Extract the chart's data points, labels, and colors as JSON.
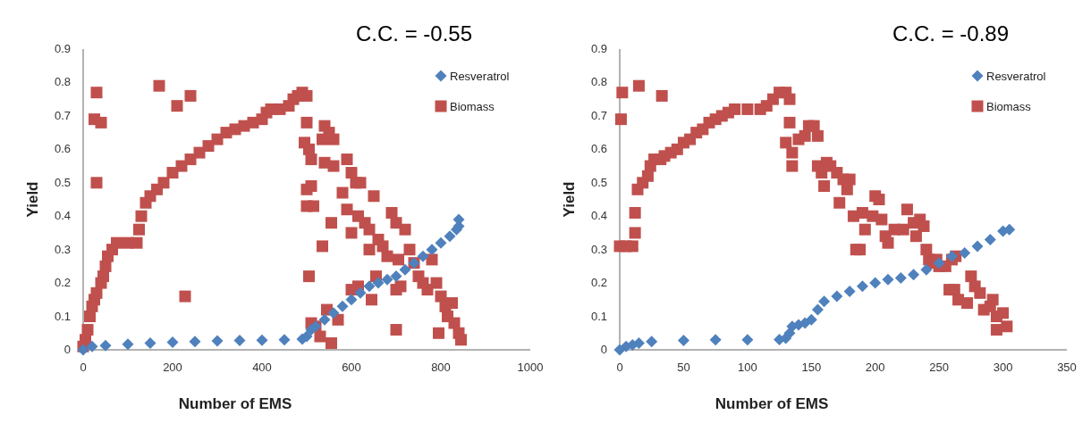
{
  "chart_data": [
    {
      "type": "scatter",
      "title": "C.C. = -0.55",
      "xlabel": "Number of EMS",
      "ylabel": "Yield",
      "xlim": [
        0,
        1000
      ],
      "xticks": [
        0,
        200,
        400,
        600,
        800,
        1000
      ],
      "ylim": [
        0,
        0.9
      ],
      "yticks": [
        0,
        0.1,
        0.2,
        0.3,
        0.4,
        0.5,
        0.6,
        0.7,
        0.8,
        0.9
      ],
      "legend": "top right",
      "grid": false,
      "series": [
        {
          "name": "Resveratrol",
          "color": "#4f81bd",
          "marker": "diamond",
          "x": [
            0,
            20,
            50,
            100,
            150,
            200,
            250,
            300,
            350,
            400,
            450,
            490,
            500,
            510,
            520,
            540,
            560,
            580,
            600,
            620,
            640,
            660,
            680,
            700,
            720,
            740,
            760,
            780,
            800,
            820,
            835,
            840,
            840
          ],
          "values": [
            0,
            0.01,
            0.013,
            0.017,
            0.02,
            0.023,
            0.025,
            0.027,
            0.028,
            0.029,
            0.03,
            0.032,
            0.04,
            0.06,
            0.07,
            0.09,
            0.11,
            0.13,
            0.15,
            0.17,
            0.19,
            0.2,
            0.21,
            0.22,
            0.24,
            0.26,
            0.28,
            0.3,
            0.32,
            0.34,
            0.36,
            0.37,
            0.39
          ]
        },
        {
          "name": "Biomass",
          "color": "#c0504d",
          "marker": "square",
          "x": [
            0,
            5,
            10,
            15,
            20,
            25,
            30,
            40,
            45,
            50,
            55,
            65,
            75,
            100,
            120,
            125,
            130,
            140,
            150,
            165,
            180,
            200,
            220,
            240,
            260,
            280,
            300,
            320,
            340,
            360,
            380,
            400,
            410,
            420,
            440,
            460,
            470,
            480,
            490,
            500,
            25,
            30,
            40,
            30,
            170,
            210,
            240,
            228,
            500,
            495,
            505,
            510,
            500,
            510,
            500,
            515,
            505,
            510,
            520,
            535,
            540,
            550,
            560,
            540,
            560,
            535,
            555,
            545,
            530,
            555,
            570,
            590,
            600,
            610,
            620,
            580,
            590,
            600,
            615,
            630,
            640,
            650,
            640,
            655,
            660,
            670,
            680,
            690,
            700,
            705,
            720,
            730,
            740,
            750,
            760,
            780,
            790,
            800,
            810,
            815,
            825,
            830,
            840,
            845,
            795,
            700,
            600,
            615,
            645,
            700,
            710,
            770
          ],
          "values": [
            0.01,
            0.03,
            0.06,
            0.1,
            0.13,
            0.15,
            0.17,
            0.2,
            0.22,
            0.25,
            0.28,
            0.3,
            0.32,
            0.32,
            0.32,
            0.36,
            0.4,
            0.44,
            0.46,
            0.48,
            0.5,
            0.53,
            0.55,
            0.57,
            0.59,
            0.61,
            0.63,
            0.65,
            0.66,
            0.67,
            0.68,
            0.69,
            0.71,
            0.72,
            0.72,
            0.73,
            0.75,
            0.76,
            0.77,
            0.76,
            0.69,
            0.77,
            0.68,
            0.5,
            0.79,
            0.73,
            0.76,
            0.16,
            0.68,
            0.62,
            0.6,
            0.57,
            0.48,
            0.49,
            0.43,
            0.43,
            0.22,
            0.08,
            0.07,
            0.63,
            0.67,
            0.65,
            0.63,
            0.56,
            0.55,
            0.31,
            0.38,
            0.12,
            0.04,
            0.02,
            0.09,
            0.57,
            0.53,
            0.5,
            0.5,
            0.47,
            0.42,
            0.35,
            0.4,
            0.38,
            0.36,
            0.46,
            0.3,
            0.22,
            0.33,
            0.31,
            0.28,
            0.41,
            0.38,
            0.27,
            0.36,
            0.3,
            0.26,
            0.22,
            0.2,
            0.27,
            0.2,
            0.16,
            0.13,
            0.1,
            0.14,
            0.08,
            0.05,
            0.03,
            0.05,
            0.06,
            0.18,
            0.19,
            0.15,
            0.18,
            0.19,
            0.18
          ]
        }
      ]
    },
    {
      "type": "scatter",
      "title": "C.C. = -0.89",
      "xlabel": "Number of EMS",
      "ylabel": "Yield",
      "xlim": [
        0,
        350
      ],
      "xticks": [
        0,
        50,
        100,
        150,
        200,
        250,
        300,
        350
      ],
      "ylim": [
        0,
        0.9
      ],
      "yticks": [
        0,
        0.1,
        0.2,
        0.3,
        0.4,
        0.5,
        0.6,
        0.7,
        0.8,
        0.9
      ],
      "legend": "top right",
      "grid": false,
      "series": [
        {
          "name": "Resveratrol",
          "color": "#4f81bd",
          "marker": "diamond",
          "x": [
            0,
            5,
            10,
            15,
            25,
            50,
            75,
            100,
            125,
            130,
            133,
            135,
            140,
            145,
            150,
            155,
            160,
            170,
            180,
            190,
            200,
            210,
            220,
            230,
            240,
            250,
            260,
            270,
            280,
            290,
            300,
            305
          ],
          "values": [
            0,
            0.01,
            0.015,
            0.02,
            0.025,
            0.028,
            0.03,
            0.03,
            0.031,
            0.035,
            0.05,
            0.07,
            0.075,
            0.08,
            0.09,
            0.12,
            0.145,
            0.16,
            0.175,
            0.19,
            0.2,
            0.21,
            0.215,
            0.225,
            0.24,
            0.26,
            0.28,
            0.29,
            0.31,
            0.33,
            0.355,
            0.36
          ]
        },
        {
          "name": "Biomass",
          "color": "#c0504d",
          "marker": "square",
          "x": [
            1,
            2,
            15,
            33,
            0,
            5,
            10,
            12,
            12,
            14,
            18,
            22,
            24,
            27,
            32,
            35,
            40,
            45,
            50,
            55,
            60,
            65,
            70,
            75,
            80,
            85,
            90,
            100,
            110,
            115,
            120,
            125,
            130,
            133,
            133,
            130,
            135,
            135,
            140,
            145,
            148,
            152,
            155,
            155,
            158,
            160,
            162,
            165,
            170,
            172,
            175,
            178,
            180,
            183,
            185,
            188,
            190,
            192,
            198,
            200,
            203,
            205,
            208,
            210,
            215,
            222,
            225,
            230,
            232,
            235,
            238,
            240,
            242,
            245,
            248,
            250,
            255,
            260,
            263,
            258,
            262,
            265,
            272,
            275,
            278,
            282,
            285,
            290,
            292,
            295,
            295,
            300,
            303
          ],
          "values": [
            0.69,
            0.77,
            0.79,
            0.76,
            0.31,
            0.31,
            0.31,
            0.35,
            0.41,
            0.48,
            0.5,
            0.52,
            0.55,
            0.57,
            0.57,
            0.58,
            0.59,
            0.6,
            0.62,
            0.63,
            0.65,
            0.66,
            0.68,
            0.69,
            0.7,
            0.71,
            0.72,
            0.72,
            0.72,
            0.73,
            0.75,
            0.77,
            0.77,
            0.75,
            0.68,
            0.62,
            0.59,
            0.55,
            0.63,
            0.64,
            0.67,
            0.67,
            0.64,
            0.55,
            0.53,
            0.49,
            0.56,
            0.55,
            0.53,
            0.44,
            0.51,
            0.48,
            0.51,
            0.4,
            0.3,
            0.3,
            0.41,
            0.36,
            0.4,
            0.46,
            0.45,
            0.39,
            0.34,
            0.32,
            0.36,
            0.36,
            0.42,
            0.38,
            0.34,
            0.39,
            0.37,
            0.3,
            0.27,
            0.26,
            0.27,
            0.25,
            0.25,
            0.27,
            0.28,
            0.18,
            0.18,
            0.15,
            0.14,
            0.22,
            0.19,
            0.17,
            0.12,
            0.13,
            0.15,
            0.1,
            0.06,
            0.11,
            0.07
          ]
        }
      ]
    }
  ]
}
